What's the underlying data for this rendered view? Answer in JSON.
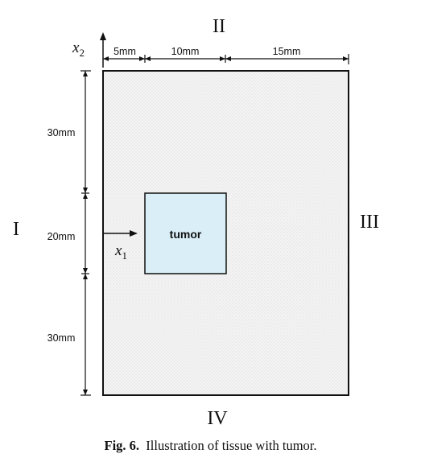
{
  "boundaries": {
    "left": "I",
    "top": "II",
    "right": "III",
    "bottom": "IV"
  },
  "dimensions": {
    "top": [
      "5mm",
      "10mm",
      "15mm"
    ],
    "left": [
      "30mm",
      "20mm",
      "30mm"
    ]
  },
  "axes": {
    "x1": "x",
    "x1_sub": "1",
    "x2": "x",
    "x2_sub": "2"
  },
  "tumor": {
    "label": "tumor",
    "fill": "#d9eef7"
  },
  "tissue": {
    "fill": "#f3f3f3",
    "border": "#111111"
  },
  "caption": {
    "label": "Fig. 6.",
    "text": "Illustration of tissue with tumor."
  }
}
